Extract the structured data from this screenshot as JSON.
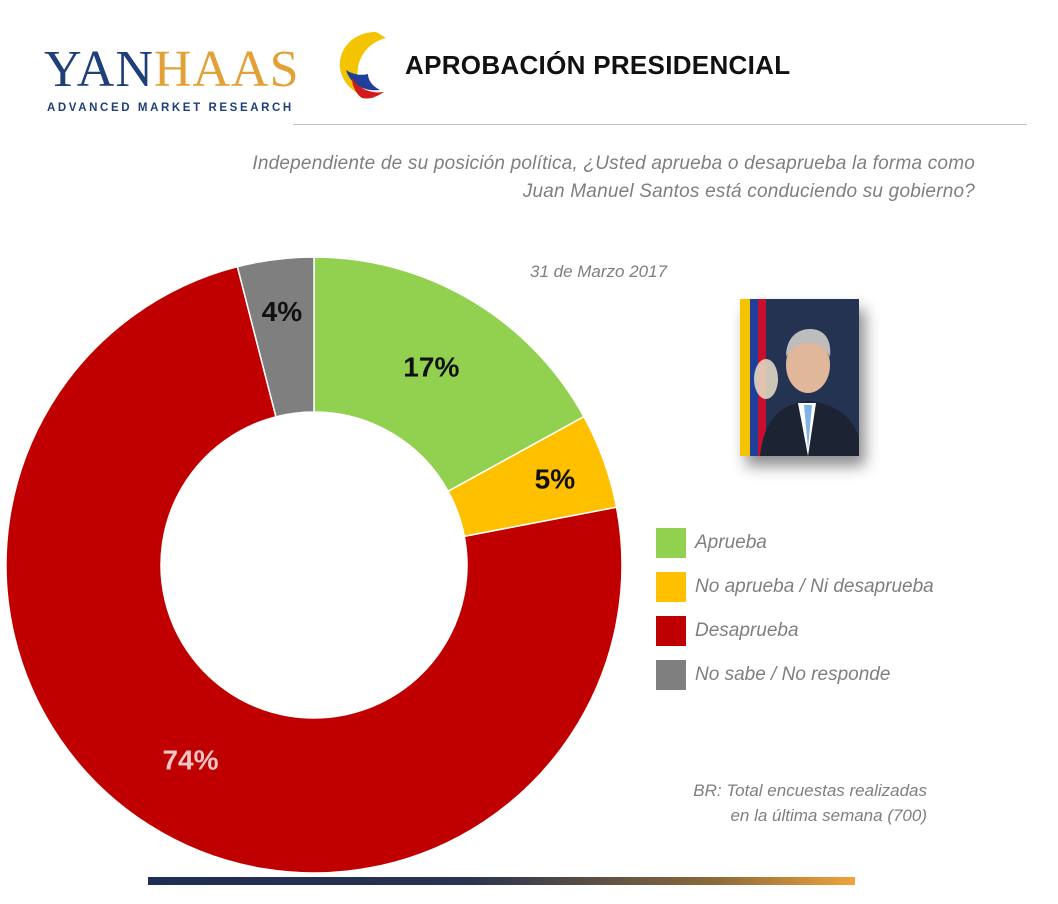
{
  "header": {
    "logo_text": "YANHAAS",
    "logo_subtitle": "ADVANCED MARKET RESEARCH",
    "title": "APROBACIÓN PRESIDENCIAL"
  },
  "question": {
    "line1": "Independiente de su posición política, ¿Usted aprueba o desaprueba la forma como",
    "line2": "Juan Manuel Santos está conduciendo su gobierno?"
  },
  "photo": {
    "description": ""
  },
  "chart_data": {
    "type": "pie",
    "subtype": "donut",
    "date_label": "31 de Marzo 2017",
    "series": [
      {
        "name": "Aprueba",
        "value": 17,
        "label": "17%",
        "color": "#92d050",
        "label_color": "#111111"
      },
      {
        "name": "No aprueba / Ni desaprueba",
        "value": 5,
        "label": "5%",
        "color": "#ffc000",
        "label_color": "#111111"
      },
      {
        "name": "Desaprueba",
        "value": 74,
        "label": "74%",
        "color": "#c00000",
        "label_color": "#f2c6c6"
      },
      {
        "name": "No sabe /  No responde",
        "value": 4,
        "label": "4%",
        "color": "#7f7f7f",
        "label_color": "#111111"
      }
    ],
    "legend_position": "right"
  },
  "footnote": {
    "line1": "BR: Total encuestas realizadas",
    "line2": "en la última semana (700)"
  },
  "colors": {
    "brand_blue": "#1f3f78",
    "brand_gold": "#e2a136"
  }
}
